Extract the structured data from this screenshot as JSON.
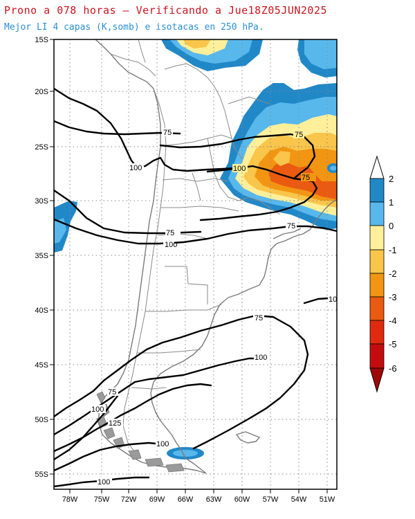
{
  "header": {
    "title": "Prono a 078 horas – Verificando a Jue18Z05JUN2025",
    "subtitle": "Mejor LI 4 capas (K,somb) e isotacas en 250 hPa."
  },
  "map": {
    "lat_ticks": [
      "15S",
      "20S",
      "25S",
      "30S",
      "35S",
      "40S",
      "45S",
      "50S",
      "55S"
    ],
    "lon_ticks": [
      "78W",
      "75W",
      "72W",
      "69W",
      "66W",
      "63W",
      "60W",
      "57W",
      "54W",
      "51W"
    ],
    "isotach_labels": [
      "75",
      "100",
      "75",
      "100",
      "75",
      "100",
      "75",
      "75",
      "100",
      "75",
      "100",
      "125",
      "100",
      "100",
      "75"
    ]
  },
  "colorbar": {
    "labels": [
      "2",
      "1",
      "0",
      "-1",
      "-2",
      "-3",
      "-4",
      "-5",
      "-6"
    ],
    "colors": [
      "#2188c8",
      "#58b8ec",
      "#ffef9a",
      "#f9c54a",
      "#f29512",
      "#ea5a10",
      "#e02a10",
      "#c40c10",
      "#a00808"
    ]
  },
  "colors": {
    "blue_dark": "#2188c8",
    "blue_light": "#58b8ec",
    "yellow_light": "#ffef9a",
    "yellow": "#f9c54a",
    "orange": "#f29512",
    "red_orange": "#ea5a10"
  }
}
